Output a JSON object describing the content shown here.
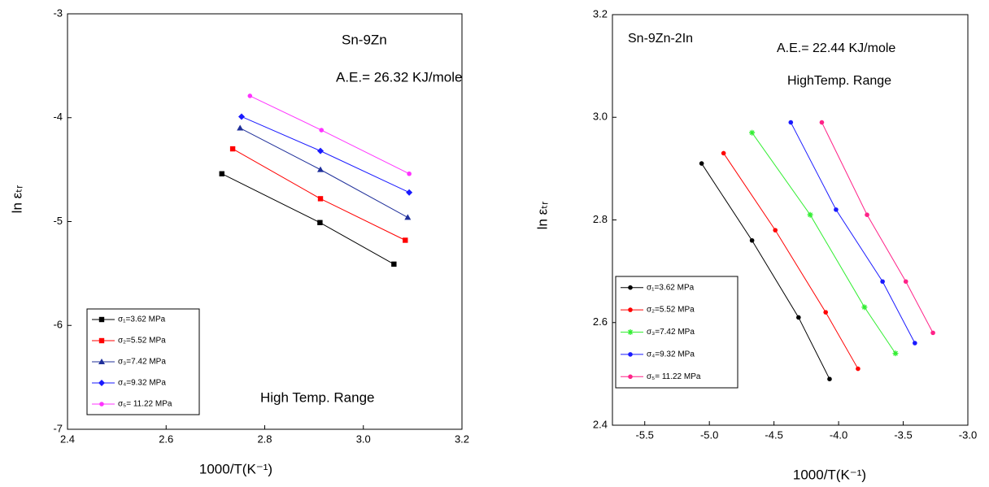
{
  "chart_data": [
    {
      "type": "line",
      "annotations": [
        "Sn-9Zn",
        "A.E.= 26.32 KJ/mole",
        "High Temp. Range"
      ],
      "xlabel": "1000/T(K⁻¹)",
      "ylabel": "ln εₜᵣ",
      "xlim": [
        2.4,
        3.2
      ],
      "xticks": [
        2.4,
        2.6,
        2.8,
        {
          "value": 3,
          "label": "3.0"
        },
        3.2
      ],
      "ylim": [
        -7,
        -3
      ],
      "yticks": [
        -7,
        -6,
        -5,
        -4,
        -3
      ],
      "series": [
        {
          "name": "σ₁=3.62 MPa",
          "color": "#000000",
          "marker": "square",
          "x": [
            2.713,
            2.912,
            3.062
          ],
          "values": [
            -4.54,
            -5.01,
            -5.41
          ]
        },
        {
          "name": "σ₂=5.52 MPa",
          "color": "#ff0000",
          "marker": "square",
          "x": [
            2.735,
            2.913,
            3.085
          ],
          "values": [
            -4.3,
            -4.78,
            -5.18
          ]
        },
        {
          "name": "σ₃=7.42 MPa",
          "color": "#1f2f9a",
          "marker": "triangle",
          "x": [
            2.75,
            2.913,
            3.09
          ],
          "values": [
            -4.1,
            -4.5,
            -4.96
          ]
        },
        {
          "name": "σ₄=9.32 MPa",
          "color": "#1a1aff",
          "marker": "diamond",
          "x": [
            2.753,
            2.913,
            3.093
          ],
          "values": [
            -3.99,
            -4.32,
            -4.72
          ]
        },
        {
          "name": "σ₅= 11.22 MPa",
          "color": "#ff33ff",
          "marker": "circle",
          "x": [
            2.77,
            2.915,
            3.093
          ],
          "values": [
            -3.79,
            -4.12,
            -4.54
          ]
        }
      ]
    },
    {
      "type": "line",
      "annotations": [
        "Sn-9Zn-2In",
        "A.E.= 22.44 KJ/mole",
        "HighTemp. Range"
      ],
      "xlabel": "1000/T(K⁻¹)",
      "ylabel": "ln εₜᵣ",
      "xlim": [
        -5.75,
        -3
      ],
      "xticks": [
        -5.5,
        {
          "value": -5,
          "label": "-5.0"
        },
        -4.5,
        {
          "value": -4,
          "label": "-4.0"
        },
        -3.5,
        {
          "value": -3,
          "label": "-3.0"
        }
      ],
      "ylim": [
        2.4,
        3.2
      ],
      "yticks": [
        2.4,
        2.6,
        2.8,
        {
          "value": 3,
          "label": "3.0"
        },
        3.2
      ],
      "series": [
        {
          "name": "σ₁=3.62 MPa",
          "color": "#000000",
          "marker": "circle",
          "x": [
            -5.06,
            -4.67,
            -4.31,
            -4.07
          ],
          "values": [
            2.91,
            2.76,
            2.61,
            2.49
          ]
        },
        {
          "name": "σ₂=5.52 MPa",
          "color": "#ff0000",
          "marker": "circle",
          "x": [
            -4.89,
            -4.49,
            -4.1,
            -3.85
          ],
          "values": [
            2.93,
            2.78,
            2.62,
            2.51
          ]
        },
        {
          "name": "σ₃=7.42 MPa",
          "color": "#33ee33",
          "marker": "star",
          "x": [
            -4.67,
            -4.22,
            -3.8,
            -3.56
          ],
          "values": [
            2.97,
            2.81,
            2.63,
            2.54
          ]
        },
        {
          "name": "σ₄=9.32 MPa",
          "color": "#1a1aff",
          "marker": "circle",
          "x": [
            -4.37,
            -4.02,
            -3.66,
            -3.41
          ],
          "values": [
            2.99,
            2.82,
            2.68,
            2.56
          ]
        },
        {
          "name": "σ₅= 11.22 MPa",
          "color": "#ff2288",
          "marker": "circle",
          "x": [
            -4.13,
            -3.78,
            -3.48,
            -3.27
          ],
          "values": [
            2.99,
            2.81,
            2.68,
            2.58
          ]
        }
      ]
    }
  ]
}
